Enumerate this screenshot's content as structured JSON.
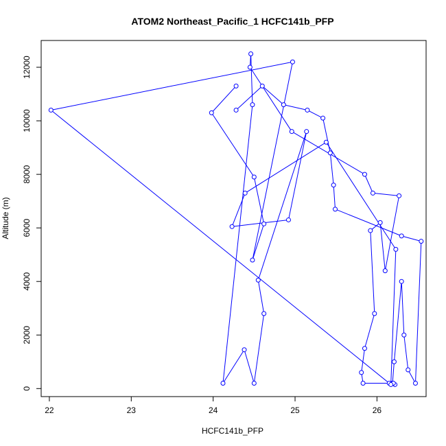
{
  "chart_data": {
    "type": "line",
    "title": "ATOM2 Northeast_Pacific_1 HCFC141b_PFP",
    "xlabel": "HCFC141b_PFP",
    "ylabel": "Altitude (m)",
    "xlim": [
      21.9,
      26.6
    ],
    "ylim": [
      -300,
      13000
    ],
    "x_ticks": [
      22,
      23,
      24,
      25,
      26
    ],
    "y_ticks": [
      0,
      2000,
      4000,
      6000,
      8000,
      10000,
      12000
    ],
    "x_tick_labels": [
      "22",
      "23",
      "24",
      "25",
      "26"
    ],
    "y_tick_labels": [
      "0",
      "2000",
      "4000",
      "6000",
      "8000",
      "10000",
      "12000"
    ],
    "color": "#0000ff",
    "marker": "open-circle",
    "series": [
      {
        "x": [
          24.28,
          24.6,
          24.86,
          25.15,
          25.34,
          25.43,
          25.47,
          25.49,
          26.3,
          26.54,
          26.47,
          26.38,
          26.33,
          26.3,
          26.21,
          26.19,
          26.22,
          26.2,
          26.15,
          25.83,
          25.81,
          25.85,
          25.97,
          25.92,
          26.04,
          26.1,
          26.27,
          25.95,
          25.85,
          24.96,
          24.45,
          24.46,
          24.48,
          24.12,
          24.38,
          24.5,
          24.62,
          24.55,
          25.14,
          24.92,
          24.23,
          24.39,
          25.38,
          26.23,
          26.17,
          22.02,
          24.97,
          24.48,
          24.62,
          24.5,
          23.98,
          24.28
        ],
        "y": [
          10400,
          11300,
          10600,
          10400,
          10100,
          8800,
          7600,
          6700,
          5700,
          5500,
          200,
          700,
          2000,
          4000,
          1000,
          200,
          150,
          200,
          200,
          200,
          600,
          1500,
          2800,
          5900,
          6200,
          4400,
          7200,
          7300,
          8000,
          9600,
          12000,
          12500,
          10600,
          200,
          1450,
          200,
          2800,
          4050,
          9600,
          6300,
          6050,
          7300,
          9200,
          5200,
          150,
          10400,
          12200,
          4800,
          6150,
          7900,
          10300,
          11300
        ]
      }
    ]
  }
}
